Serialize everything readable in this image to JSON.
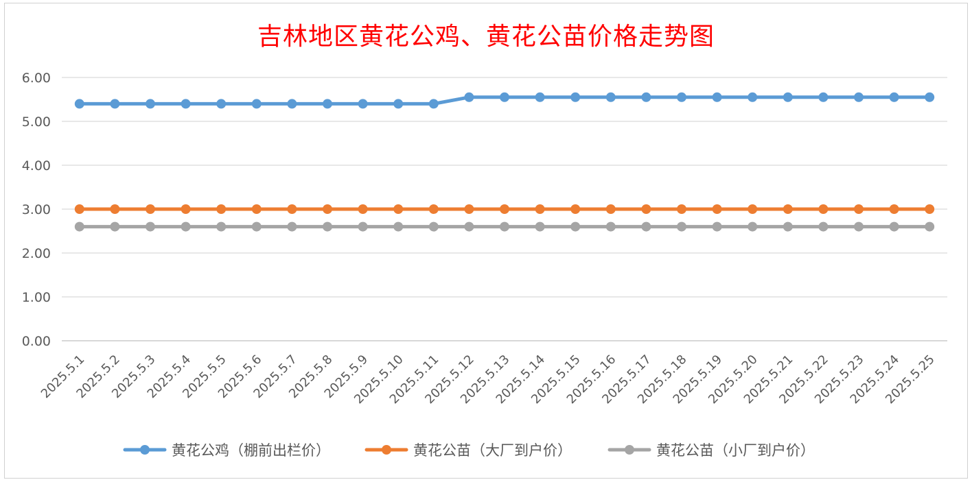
{
  "chart_data": {
    "type": "line",
    "title": "吉林地区黄花公鸡、黄花公苗价格走势图",
    "categories": [
      "2025.5.1",
      "2025.5.2",
      "2025.5.3",
      "2025.5.4",
      "2025.5.5",
      "2025.5.6",
      "2025.5.7",
      "2025.5.8",
      "2025.5.9",
      "2025.5.10",
      "2025.5.11",
      "2025.5.12",
      "2025.5.13",
      "2025.5.14",
      "2025.5.15",
      "2025.5.16",
      "2025.5.17",
      "2025.5.18",
      "2025.5.19",
      "2025.5.20",
      "2025.5.21",
      "2025.5.22",
      "2025.5.23",
      "2025.5.24",
      "2025.5.25"
    ],
    "y_ticks": [
      "0.00",
      "1.00",
      "2.00",
      "3.00",
      "4.00",
      "5.00",
      "6.00"
    ],
    "ylim": [
      0,
      6
    ],
    "grid": true,
    "legend_position": "bottom",
    "series": [
      {
        "name": "黄花公鸡（棚前出栏价）",
        "color": "#5b9bd5",
        "values": [
          5.4,
          5.4,
          5.4,
          5.4,
          5.4,
          5.4,
          5.4,
          5.4,
          5.4,
          5.4,
          5.4,
          5.55,
          5.55,
          5.55,
          5.55,
          5.55,
          5.55,
          5.55,
          5.55,
          5.55,
          5.55,
          5.55,
          5.55,
          5.55,
          5.55
        ]
      },
      {
        "name": "黄花公苗（大厂到户价）",
        "color": "#ed7d31",
        "values": [
          3.0,
          3.0,
          3.0,
          3.0,
          3.0,
          3.0,
          3.0,
          3.0,
          3.0,
          3.0,
          3.0,
          3.0,
          3.0,
          3.0,
          3.0,
          3.0,
          3.0,
          3.0,
          3.0,
          3.0,
          3.0,
          3.0,
          3.0,
          3.0,
          3.0
        ]
      },
      {
        "name": "黄花公苗（小厂到户价）",
        "color": "#a5a5a5",
        "values": [
          2.6,
          2.6,
          2.6,
          2.6,
          2.6,
          2.6,
          2.6,
          2.6,
          2.6,
          2.6,
          2.6,
          2.6,
          2.6,
          2.6,
          2.6,
          2.6,
          2.6,
          2.6,
          2.6,
          2.6,
          2.6,
          2.6,
          2.6,
          2.6,
          2.6
        ]
      }
    ]
  }
}
